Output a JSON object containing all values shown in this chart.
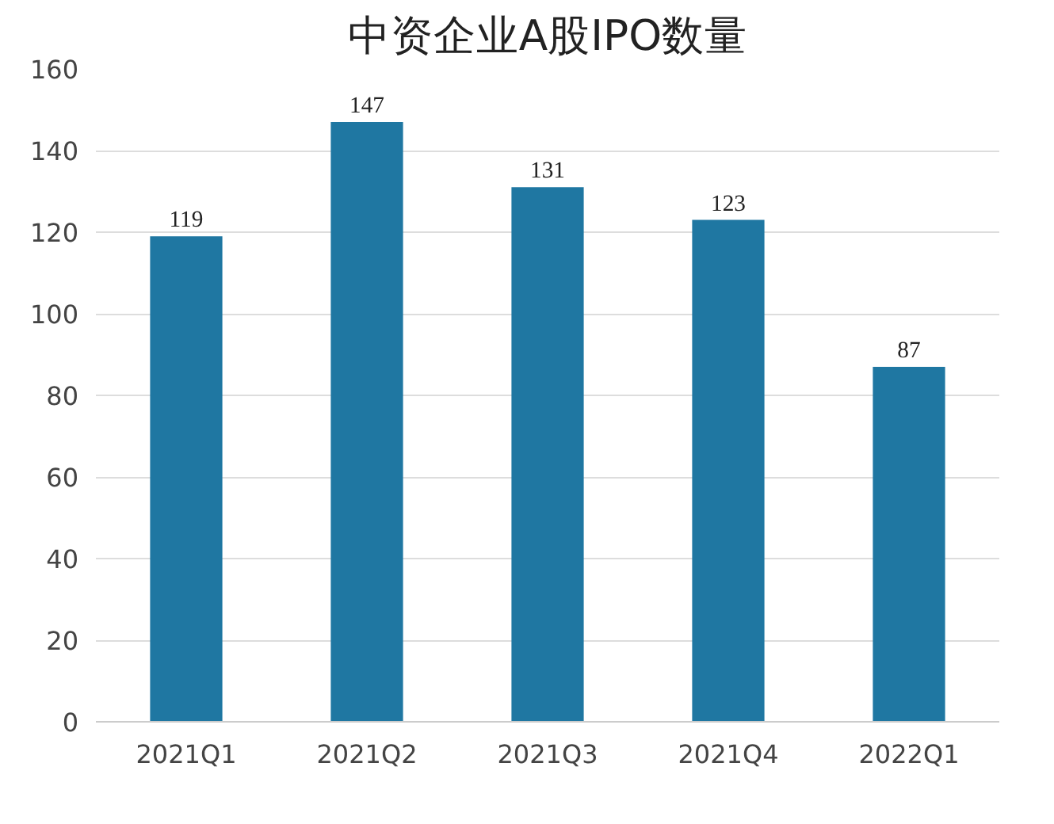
{
  "chart_data": {
    "type": "bar",
    "title": "中资企业A股IPO数量",
    "categories": [
      "2021Q1",
      "2021Q2",
      "2021Q3",
      "2021Q4",
      "2022Q1"
    ],
    "values": [
      119,
      147,
      131,
      123,
      87
    ],
    "color": "#1f77a2",
    "ylim": [
      0,
      160
    ],
    "yticks": [
      0,
      20,
      40,
      60,
      80,
      100,
      120,
      140,
      160
    ],
    "grid": "y",
    "data_labels": true
  }
}
